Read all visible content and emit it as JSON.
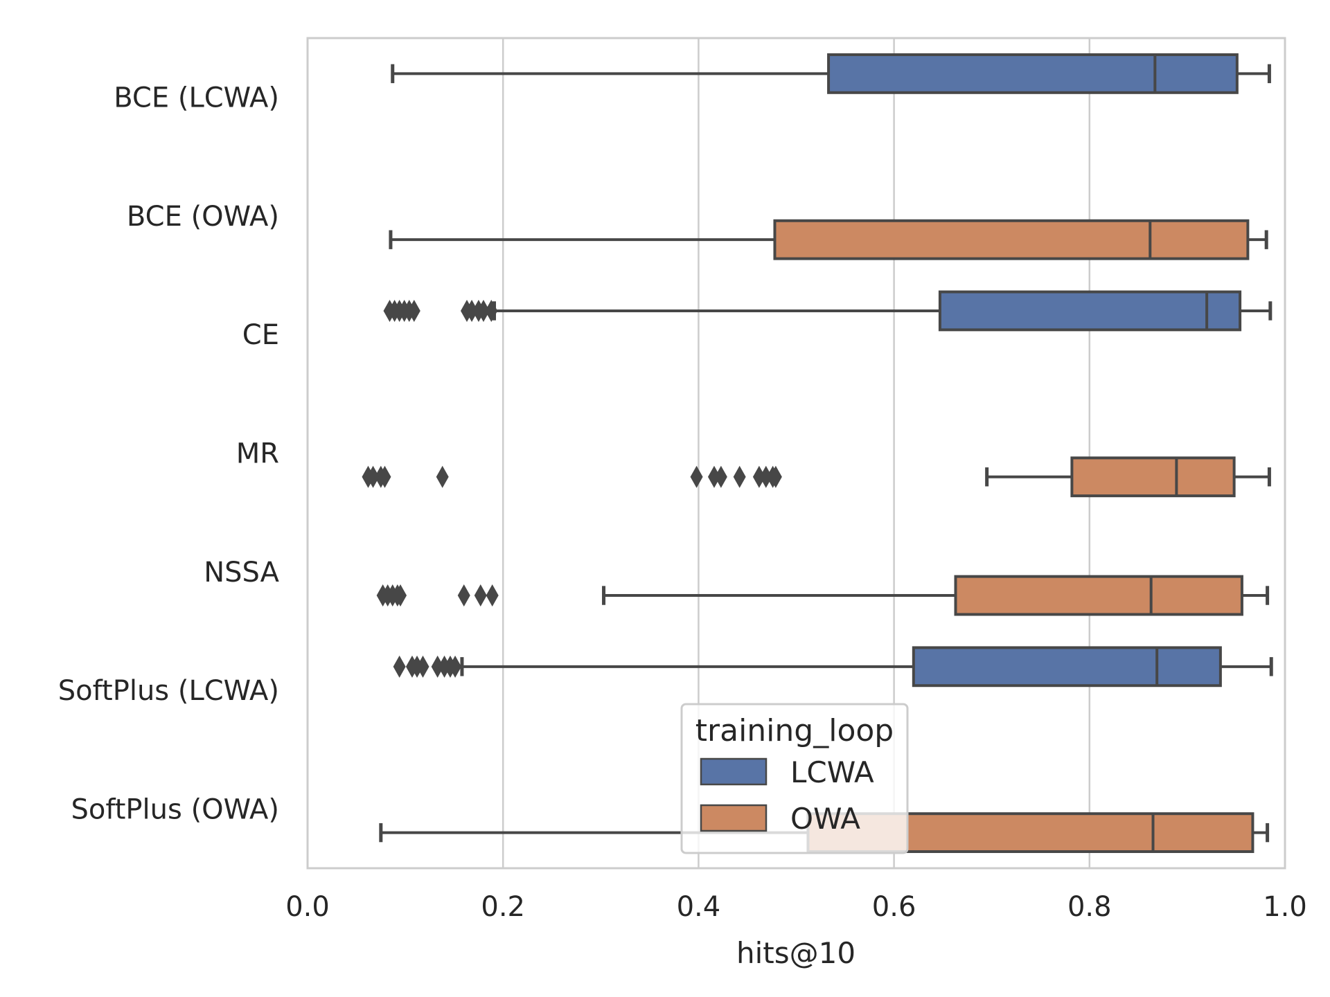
{
  "chart_data": {
    "type": "box",
    "orientation": "horizontal",
    "xlabel": "hits@10",
    "ylabel": "",
    "xlim": [
      0.0,
      1.0
    ],
    "xticks": [
      0.0,
      0.2,
      0.4,
      0.6,
      0.8,
      1.0
    ],
    "xtick_labels": [
      "0.0",
      "0.2",
      "0.4",
      "0.6",
      "0.8",
      "1.0"
    ],
    "grid": "vertical",
    "categories": [
      "BCE (LCWA)",
      "BCE (OWA)",
      "CE",
      "MR",
      "NSSA",
      "SoftPlus (LCWA)",
      "SoftPlus (OWA)"
    ],
    "hue_levels": [
      "LCWA",
      "OWA"
    ],
    "colors": {
      "LCWA": "#5874a6",
      "OWA": "#cc8962",
      "line": "#474747",
      "grid": "#cccccc"
    },
    "series": [
      {
        "category": "BCE (LCWA)",
        "hue": "LCWA",
        "whisker_low": 0.087,
        "q1": 0.533,
        "median": 0.867,
        "q3": 0.951,
        "whisker_high": 0.984,
        "outliers": []
      },
      {
        "category": "BCE (OWA)",
        "hue": "OWA",
        "whisker_low": 0.085,
        "q1": 0.478,
        "median": 0.862,
        "q3": 0.962,
        "whisker_high": 0.981,
        "outliers": []
      },
      {
        "category": "CE",
        "hue": "LCWA",
        "whisker_low": 0.191,
        "q1": 0.647,
        "median": 0.92,
        "q3": 0.954,
        "whisker_high": 0.985,
        "outliers": [
          0.084,
          0.089,
          0.094,
          0.099,
          0.104,
          0.109,
          0.163,
          0.168,
          0.175,
          0.18,
          0.188
        ]
      },
      {
        "category": "MR",
        "hue": "OWA",
        "whisker_low": 0.695,
        "q1": 0.782,
        "median": 0.889,
        "q3": 0.948,
        "whisker_high": 0.984,
        "outliers": [
          0.062,
          0.067,
          0.075,
          0.079,
          0.138,
          0.398,
          0.416,
          0.423,
          0.442,
          0.462,
          0.469,
          0.476,
          0.479
        ]
      },
      {
        "category": "NSSA",
        "hue": "OWA",
        "whisker_low": 0.303,
        "q1": 0.663,
        "median": 0.863,
        "q3": 0.956,
        "whisker_high": 0.982,
        "outliers": [
          0.077,
          0.082,
          0.087,
          0.092,
          0.095,
          0.16,
          0.177,
          0.189
        ]
      },
      {
        "category": "SoftPlus (LCWA)",
        "hue": "LCWA",
        "whisker_low": 0.158,
        "q1": 0.62,
        "median": 0.869,
        "q3": 0.934,
        "whisker_high": 0.986,
        "outliers": [
          0.094,
          0.107,
          0.112,
          0.118,
          0.133,
          0.14,
          0.146,
          0.151
        ]
      },
      {
        "category": "SoftPlus (OWA)",
        "hue": "OWA",
        "whisker_low": 0.075,
        "q1": 0.512,
        "median": 0.865,
        "q3": 0.967,
        "whisker_high": 0.982,
        "outliers": []
      }
    ],
    "legend": {
      "title": "training_loop",
      "entries": [
        "LCWA",
        "OWA"
      ],
      "placement": "lower center"
    }
  }
}
